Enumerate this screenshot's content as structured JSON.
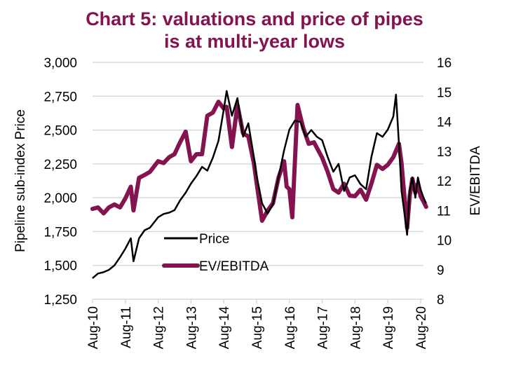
{
  "chart_data": {
    "type": "line",
    "title": "Chart 5: valuations and price of pipes is at multi-year lows",
    "title_lines": [
      "Chart 5: valuations and price of pipes",
      "is at multi-year lows"
    ],
    "xlabel": "",
    "ylabel": "Pipeline sub-index Price",
    "y2label": "EV/EBITDA",
    "ylim": [
      1250,
      3000
    ],
    "y2lim": [
      8,
      16
    ],
    "yticks": [
      "1,250",
      "1,500",
      "1,750",
      "2,000",
      "2,250",
      "2,500",
      "2,750",
      "3,000"
    ],
    "yticks_values": [
      1250,
      1500,
      1750,
      2000,
      2250,
      2500,
      2750,
      3000
    ],
    "y2ticks": [
      "8",
      "9",
      "10",
      "11",
      "12",
      "13",
      "14",
      "15",
      "16"
    ],
    "y2ticks_values": [
      8,
      9,
      10,
      11,
      12,
      13,
      14,
      15,
      16
    ],
    "xticks": [
      "Aug-10",
      "Aug-11",
      "Aug-12",
      "Aug-13",
      "Aug-14",
      "Aug-15",
      "Aug-16",
      "Aug-17",
      "Aug-18",
      "Aug-19",
      "Aug-20"
    ],
    "xlim_years": [
      2010.583,
      2020.75
    ],
    "grid": "horizontal",
    "legend_position": "center-left",
    "colors": {
      "price": "#000000",
      "ev_ebitda": "#84134f",
      "grid": "#d9d9d9",
      "title": "#84134f"
    },
    "series": [
      {
        "name": "Price",
        "axis": "left",
        "x": [
          2010.58,
          2010.75,
          2010.92,
          2011.08,
          2011.25,
          2011.42,
          2011.58,
          2011.75,
          2011.83,
          2012.0,
          2012.17,
          2012.33,
          2012.58,
          2012.75,
          2012.92,
          2013.08,
          2013.25,
          2013.42,
          2013.58,
          2013.75,
          2013.92,
          2014.08,
          2014.25,
          2014.42,
          2014.58,
          2014.67,
          2014.83,
          2015.0,
          2015.17,
          2015.33,
          2015.5,
          2015.58,
          2015.75,
          2015.92,
          2016.08,
          2016.25,
          2016.42,
          2016.58,
          2016.75,
          2016.92,
          2017.08,
          2017.25,
          2017.42,
          2017.58,
          2017.75,
          2017.92,
          2018.08,
          2018.25,
          2018.42,
          2018.58,
          2018.75,
          2018.92,
          2019.08,
          2019.25,
          2019.42,
          2019.58,
          2019.75,
          2019.83,
          2019.92,
          2020.0,
          2020.08,
          2020.17,
          2020.25,
          2020.33,
          2020.42,
          2020.5,
          2020.58,
          2020.67,
          2020.75
        ],
        "values": [
          1405,
          1440,
          1450,
          1467,
          1500,
          1560,
          1623,
          1700,
          1530,
          1700,
          1760,
          1778,
          1855,
          1880,
          1890,
          1908,
          1980,
          2037,
          2104,
          2160,
          2228,
          2200,
          2296,
          2420,
          2650,
          2788,
          2606,
          2736,
          2451,
          2550,
          2300,
          2166,
          1959,
          1882,
          1950,
          2150,
          2350,
          2503,
          2570,
          2560,
          2451,
          2500,
          2450,
          2425,
          2300,
          2192,
          2250,
          2050,
          2150,
          2166,
          2100,
          2063,
          2300,
          2477,
          2450,
          2503,
          2600,
          2762,
          2400,
          2050,
          1900,
          1726,
          2050,
          2150,
          2000,
          2150,
          2063,
          2000,
          1959
        ]
      },
      {
        "name": "EV/EBITDA",
        "axis": "right",
        "x": [
          2010.58,
          2010.75,
          2010.92,
          2011.08,
          2011.25,
          2011.42,
          2011.58,
          2011.75,
          2011.83,
          2012.0,
          2012.17,
          2012.33,
          2012.58,
          2012.75,
          2012.92,
          2013.08,
          2013.25,
          2013.42,
          2013.58,
          2013.75,
          2013.92,
          2014.08,
          2014.25,
          2014.42,
          2014.58,
          2014.67,
          2014.83,
          2015.0,
          2015.17,
          2015.33,
          2015.5,
          2015.58,
          2015.75,
          2015.92,
          2016.08,
          2016.25,
          2016.42,
          2016.5,
          2016.58,
          2016.67,
          2016.83,
          2017.0,
          2017.17,
          2017.33,
          2017.58,
          2017.75,
          2017.92,
          2018.08,
          2018.25,
          2018.42,
          2018.58,
          2018.75,
          2018.92,
          2019.08,
          2019.25,
          2019.42,
          2019.58,
          2019.75,
          2019.92,
          2020.0,
          2020.17,
          2020.25,
          2020.33,
          2020.42,
          2020.5,
          2020.58,
          2020.67,
          2020.75
        ],
        "values": [
          11.05,
          11.1,
          10.9,
          11.1,
          11.2,
          11.1,
          11.4,
          11.8,
          11.0,
          12.1,
          12.2,
          12.3,
          12.66,
          12.6,
          12.8,
          12.9,
          13.3,
          13.66,
          12.66,
          12.9,
          12.9,
          14.2,
          14.3,
          14.67,
          14.44,
          14.5,
          13.14,
          14.56,
          13.6,
          13.5,
          12.6,
          11.95,
          10.65,
          11.0,
          11.24,
          12.1,
          12.66,
          11.8,
          11.72,
          10.77,
          14.56,
          13.8,
          13.25,
          13.3,
          12.78,
          12.3,
          11.72,
          11.6,
          11.9,
          11.5,
          11.48,
          11.7,
          11.36,
          11.9,
          12.54,
          12.4,
          12.54,
          12.8,
          13.25,
          12.6,
          10.41,
          11.5,
          12.07,
          11.6,
          11.9,
          11.48,
          11.3,
          11.12
        ]
      }
    ]
  }
}
